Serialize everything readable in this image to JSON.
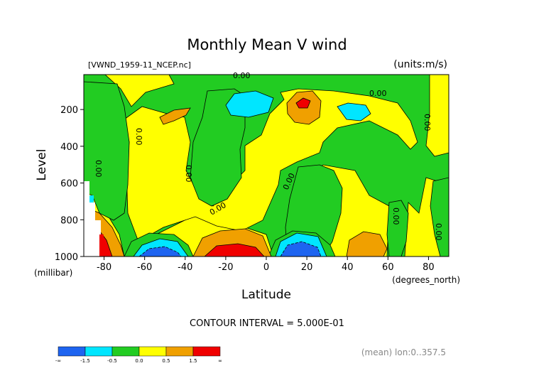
{
  "chart_data": {
    "type": "contour",
    "title": "Monthly Mean V wind",
    "subtitle_left": "[VWND_1959-11_NCEP.nc]",
    "subtitle_right": "(units:m/s)",
    "xlabel": "Latitude",
    "x_units": "(degrees_north)",
    "ylabel": "Level",
    "y_units": "(millibar)",
    "xlim": [
      -90,
      90
    ],
    "ylim": [
      1000,
      10
    ],
    "x_ticks": [
      -80,
      -60,
      -40,
      -20,
      0,
      20,
      40,
      60,
      80
    ],
    "y_ticks": [
      200,
      400,
      600,
      800,
      1000
    ],
    "contour_interval_text": "CONTOUR INTERVAL = 5.000E-01",
    "footer_text": "(mean) lon:0..357.5",
    "contour_labels": [
      "0.00",
      "0.00",
      "0.00",
      "0.00",
      "0.00",
      "0.00",
      "0.00",
      "0.00",
      "0.00",
      "0.00"
    ],
    "colorbar": {
      "labels": [
        "-∞",
        "-1.5",
        "-0.5",
        "0.0",
        "0.5",
        "1.5",
        "∞"
      ],
      "colors": [
        "#1e64f0",
        "#00e6ff",
        "#22cc22",
        "#ffff00",
        "#f0a000",
        "#f00000"
      ]
    },
    "palette": {
      "blue": "#1e64f0",
      "cyan": "#00e6ff",
      "green": "#22cc22",
      "yellow": "#ffff00",
      "orange": "#f0a000",
      "red": "#f00000"
    }
  }
}
